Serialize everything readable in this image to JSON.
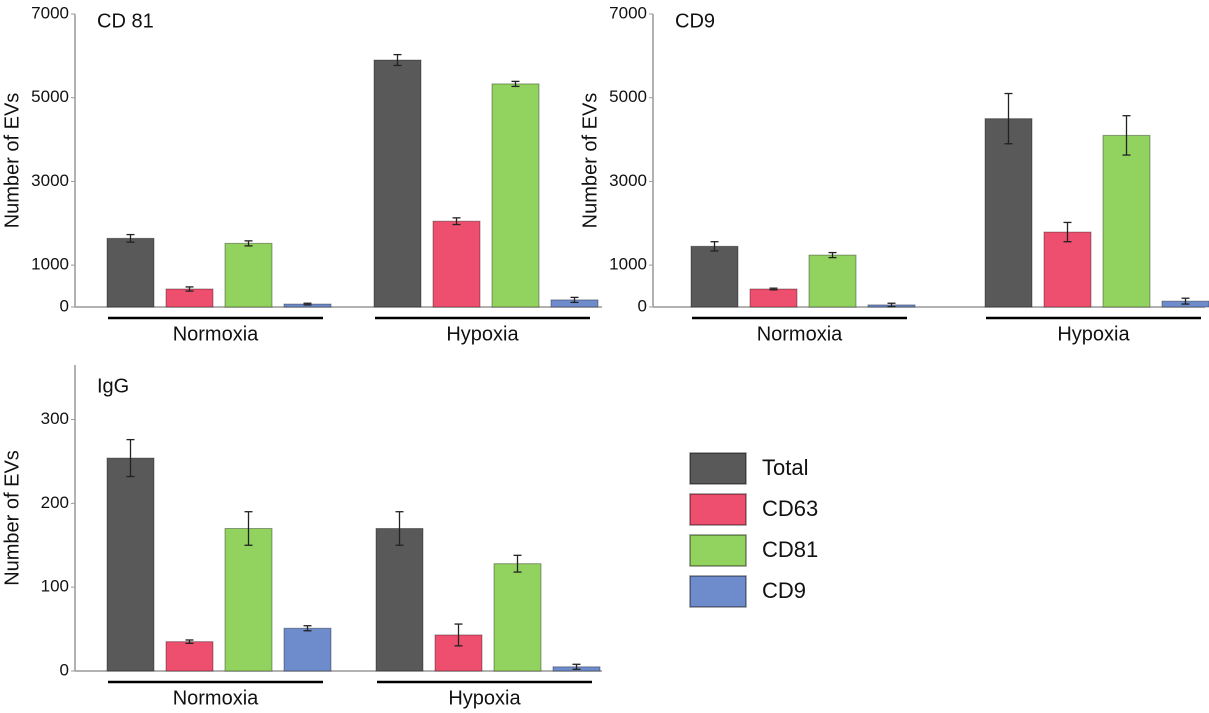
{
  "legend": [
    {
      "name": "Total",
      "color": "#595959"
    },
    {
      "name": "CD63",
      "color": "#ee4f6e"
    },
    {
      "name": "CD81",
      "color": "#92d25f"
    },
    {
      "name": "CD9",
      "color": "#6e8ccc"
    }
  ],
  "chart_data": [
    {
      "type": "bar",
      "title": "CD 81",
      "ylabel": "Number of EVs",
      "categories": [
        "Normoxia",
        "Hypoxia"
      ],
      "series": [
        {
          "values": [
            1640,
            5900
          ],
          "errors": [
            90,
            130
          ]
        },
        {
          "values": [
            430,
            2050
          ],
          "errors": [
            50,
            80
          ]
        },
        {
          "values": [
            1520,
            5330
          ],
          "errors": [
            60,
            60
          ]
        },
        {
          "values": [
            70,
            170
          ],
          "errors": [
            20,
            60
          ]
        }
      ],
      "ylim": [
        0,
        7000
      ],
      "yticks": [
        0,
        1000,
        3000,
        5000,
        7000
      ]
    },
    {
      "type": "bar",
      "title": "CD9",
      "ylabel": "Number of EVs",
      "categories": [
        "Normoxia",
        "Hypoxia"
      ],
      "series": [
        {
          "values": [
            1450,
            4500
          ],
          "errors": [
            110,
            600
          ]
        },
        {
          "values": [
            430,
            1790
          ],
          "errors": [
            20,
            230
          ]
        },
        {
          "values": [
            1240,
            4100
          ],
          "errors": [
            60,
            470
          ]
        },
        {
          "values": [
            50,
            140
          ],
          "errors": [
            40,
            70
          ]
        }
      ],
      "ylim": [
        0,
        7000
      ],
      "yticks": [
        0,
        1000,
        3000,
        5000,
        7000
      ]
    },
    {
      "type": "bar",
      "title": "IgG",
      "ylabel": "Number of EVs",
      "categories": [
        "Normoxia",
        "Hypoxia"
      ],
      "series": [
        {
          "values": [
            254,
            170
          ],
          "errors": [
            22,
            20
          ]
        },
        {
          "values": [
            35,
            43
          ],
          "errors": [
            2,
            13
          ]
        },
        {
          "values": [
            170,
            128
          ],
          "errors": [
            20,
            10
          ]
        },
        {
          "values": [
            51,
            5
          ],
          "errors": [
            3,
            3
          ]
        }
      ],
      "ylim": [
        0,
        365
      ],
      "yticks": [
        0,
        100,
        200,
        300
      ]
    }
  ]
}
